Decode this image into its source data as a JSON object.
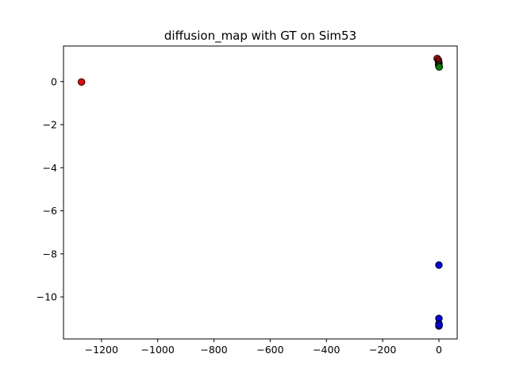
{
  "chart_data": {
    "type": "scatter",
    "title": "diffusion_map with GT on Sim53",
    "xlabel": "",
    "ylabel": "",
    "xlim": [
      -1335,
      65
    ],
    "ylim": [
      -11.95,
      1.65
    ],
    "x_ticks": [
      -1200,
      -1000,
      -800,
      -600,
      -400,
      -200,
      0
    ],
    "x_tick_labels": [
      "−1200",
      "−1000",
      "−800",
      "−600",
      "−400",
      "−200",
      "0"
    ],
    "y_ticks": [
      0,
      -2,
      -4,
      -6,
      -8,
      -10
    ],
    "y_tick_labels": [
      "0",
      "−2",
      "−4",
      "−6",
      "−8",
      "−10"
    ],
    "grid": false,
    "series": [
      {
        "color": "#ff0000",
        "points": [
          {
            "x": -1271,
            "y": -0.02
          },
          {
            "x": -6,
            "y": 1.07
          },
          {
            "x": -2,
            "y": 1.0
          },
          {
            "x": -1,
            "y": 0.93
          },
          {
            "x": 0,
            "y": 0.85
          }
        ]
      },
      {
        "color": "#008000",
        "points": [
          {
            "x": -1,
            "y": 0.78
          },
          {
            "x": 0,
            "y": 0.72
          },
          {
            "x": 1,
            "y": 0.68
          }
        ]
      },
      {
        "color": "#0000ff",
        "points": [
          {
            "x": 0,
            "y": -8.52
          },
          {
            "x": 0,
            "y": -11.0
          },
          {
            "x": 0,
            "y": -11.25
          },
          {
            "x": 0,
            "y": -11.35
          },
          {
            "x": 1,
            "y": -11.3
          }
        ]
      }
    ]
  }
}
